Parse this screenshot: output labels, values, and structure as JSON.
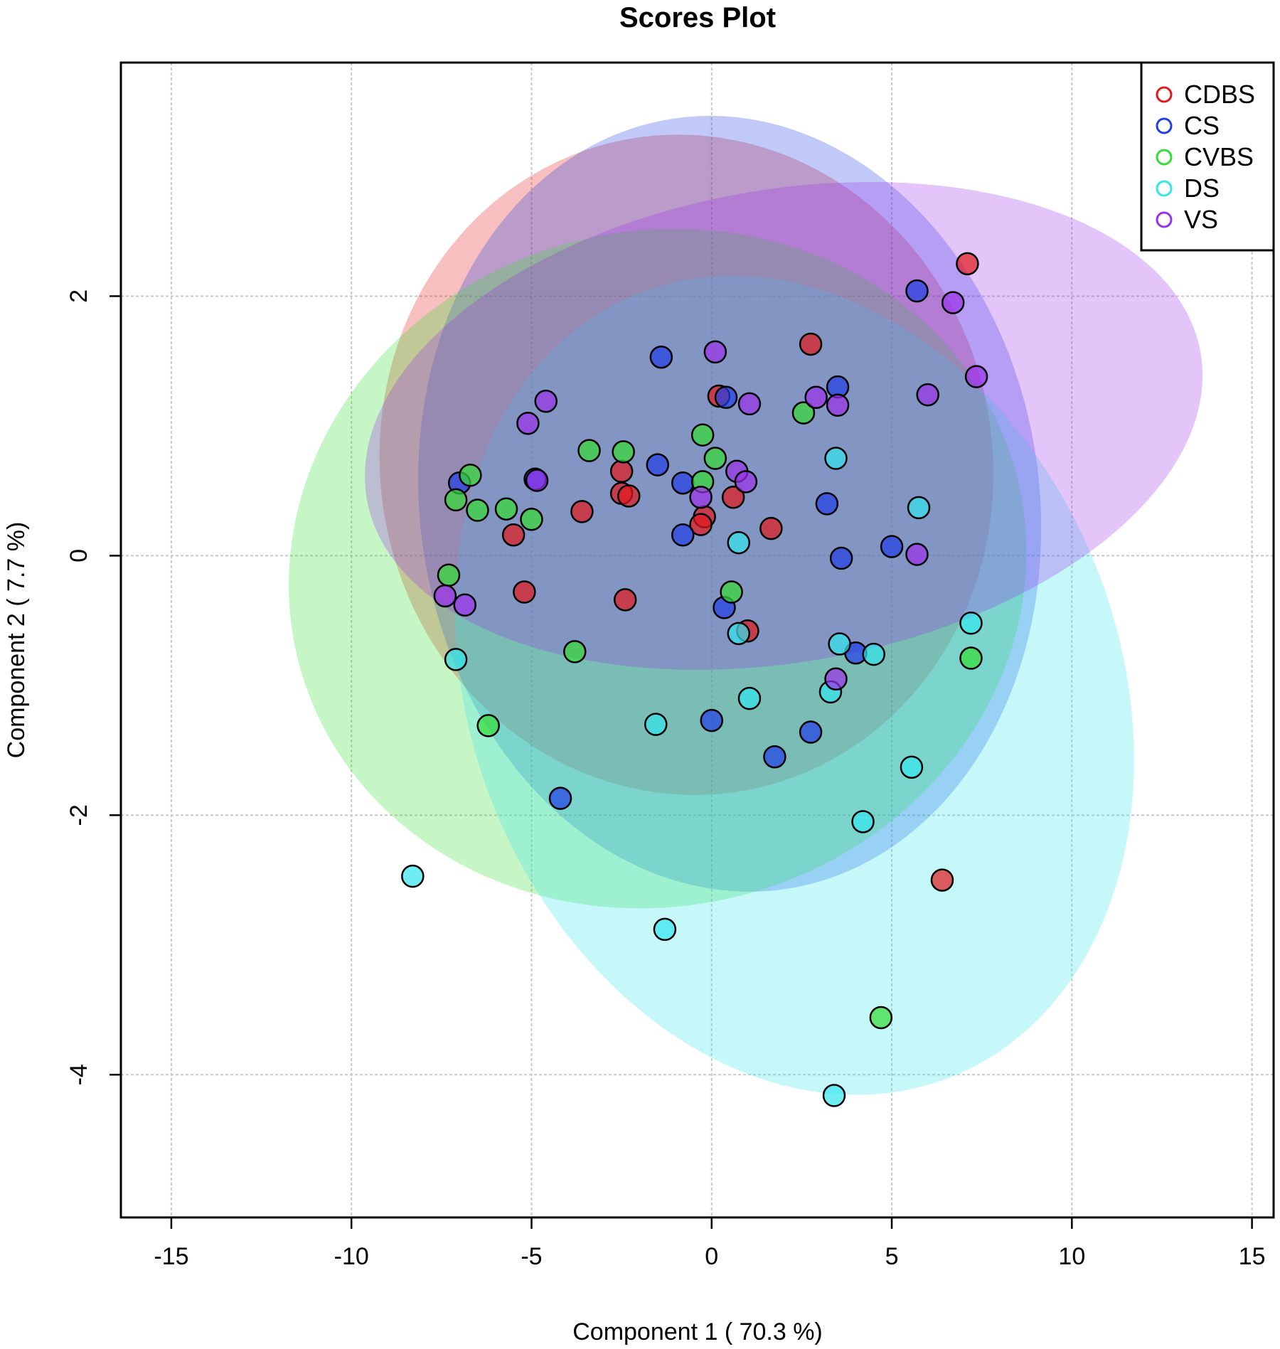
{
  "chart_data": {
    "type": "scatter",
    "title": "Scores Plot",
    "xlabel": "Component 1 ( 70.3 %)",
    "ylabel": "Component 2 ( 7.7 %)",
    "xlim": [
      -16.4,
      15.6
    ],
    "ylim": [
      -5.1,
      3.8
    ],
    "x_ticks": [
      -15,
      -10,
      -5,
      0,
      5,
      10,
      15
    ],
    "y_ticks": [
      -4,
      -2,
      0,
      2
    ],
    "x_tick_labels": [
      "-15",
      "-10",
      "-5",
      "0",
      "5",
      "10",
      "15"
    ],
    "y_tick_labels": [
      "-4",
      "-2",
      "0",
      "2"
    ],
    "grid": true,
    "legend_position": "top-right",
    "series": [
      {
        "name": "CDBS",
        "color": "#e31a1c",
        "points": [
          [
            7.1,
            2.25
          ],
          [
            2.75,
            1.63
          ],
          [
            0.2,
            1.23
          ],
          [
            -2.5,
            0.65
          ],
          [
            -2.5,
            0.48
          ],
          [
            -2.3,
            0.46
          ],
          [
            -3.6,
            0.34
          ],
          [
            -0.2,
            0.3
          ],
          [
            -0.3,
            0.24
          ],
          [
            0.6,
            0.45
          ],
          [
            1.65,
            0.21
          ],
          [
            -5.5,
            0.16
          ],
          [
            -5.2,
            -0.28
          ],
          [
            -2.4,
            -0.34
          ],
          [
            1.0,
            -0.58
          ],
          [
            6.4,
            -2.5
          ]
        ],
        "ellipse": {
          "cx": -0.7,
          "cy": 0.7,
          "rx": 8.5,
          "ry": 2.55,
          "angle_deg": 10
        }
      },
      {
        "name": "CS",
        "color": "#1f3ee6",
        "points": [
          [
            5.7,
            2.04
          ],
          [
            -1.4,
            1.53
          ],
          [
            0.4,
            1.22
          ],
          [
            3.5,
            1.3
          ],
          [
            -1.5,
            0.7
          ],
          [
            -0.8,
            0.56
          ],
          [
            -7.0,
            0.56
          ],
          [
            -4.9,
            0.59
          ],
          [
            -0.8,
            0.16
          ],
          [
            3.2,
            0.4
          ],
          [
            5.0,
            0.07
          ],
          [
            3.6,
            -0.02
          ],
          [
            0.35,
            -0.4
          ],
          [
            4.0,
            -0.75
          ],
          [
            0.0,
            -1.27
          ],
          [
            2.75,
            -1.36
          ],
          [
            1.75,
            -1.55
          ],
          [
            -4.2,
            -1.87
          ]
        ],
        "ellipse": {
          "cx": 0.5,
          "cy": 0.4,
          "rx": 8.6,
          "ry": 3.0,
          "angle_deg": 8
        }
      },
      {
        "name": "CVBS",
        "color": "#33dd33",
        "points": [
          [
            2.55,
            1.1
          ],
          [
            -0.25,
            0.93
          ],
          [
            -2.45,
            0.8
          ],
          [
            -3.4,
            0.81
          ],
          [
            0.1,
            0.75
          ],
          [
            -6.7,
            0.62
          ],
          [
            -7.1,
            0.43
          ],
          [
            -0.25,
            0.57
          ],
          [
            -6.5,
            0.35
          ],
          [
            -5.7,
            0.36
          ],
          [
            -5.0,
            0.28
          ],
          [
            -7.3,
            -0.15
          ],
          [
            0.55,
            -0.28
          ],
          [
            -3.8,
            -0.74
          ],
          [
            7.2,
            -0.79
          ],
          [
            -6.2,
            -1.31
          ],
          [
            4.7,
            -3.56
          ]
        ],
        "ellipse": {
          "cx": -1.5,
          "cy": -0.1,
          "rx": 10.3,
          "ry": 2.6,
          "angle_deg": 15
        }
      },
      {
        "name": "DS",
        "color": "#33e6ee",
        "points": [
          [
            3.45,
            0.75
          ],
          [
            5.75,
            0.37
          ],
          [
            0.75,
            0.1
          ],
          [
            7.2,
            -0.52
          ],
          [
            0.75,
            -0.6
          ],
          [
            3.55,
            -0.68
          ],
          [
            4.5,
            -0.76
          ],
          [
            -7.1,
            -0.8
          ],
          [
            1.05,
            -1.1
          ],
          [
            3.3,
            -1.05
          ],
          [
            -1.55,
            -1.3
          ],
          [
            5.55,
            -1.63
          ],
          [
            4.2,
            -2.05
          ],
          [
            -8.3,
            -2.47
          ],
          [
            -1.3,
            -2.88
          ],
          [
            3.4,
            -4.16
          ]
        ],
        "ellipse": {
          "cx": 2.3,
          "cy": -1.0,
          "rx": 9.0,
          "ry": 3.25,
          "angle_deg": 22
        }
      },
      {
        "name": "VS",
        "color": "#9b30e8",
        "points": [
          [
            6.7,
            1.95
          ],
          [
            0.1,
            1.57
          ],
          [
            7.35,
            1.38
          ],
          [
            6.0,
            1.24
          ],
          [
            2.9,
            1.22
          ],
          [
            3.5,
            1.16
          ],
          [
            1.05,
            1.17
          ],
          [
            -4.6,
            1.19
          ],
          [
            -5.1,
            1.02
          ],
          [
            -4.85,
            0.58
          ],
          [
            0.7,
            0.65
          ],
          [
            0.95,
            0.57
          ],
          [
            -0.3,
            0.45
          ],
          [
            5.7,
            0.01
          ],
          [
            -7.4,
            -0.31
          ],
          [
            -6.85,
            -0.38
          ],
          [
            3.45,
            -0.95
          ]
        ],
        "ellipse": {
          "cx": 2.0,
          "cy": 1.0,
          "rx": 11.75,
          "ry": 1.82,
          "angle_deg": 10
        }
      }
    ]
  }
}
